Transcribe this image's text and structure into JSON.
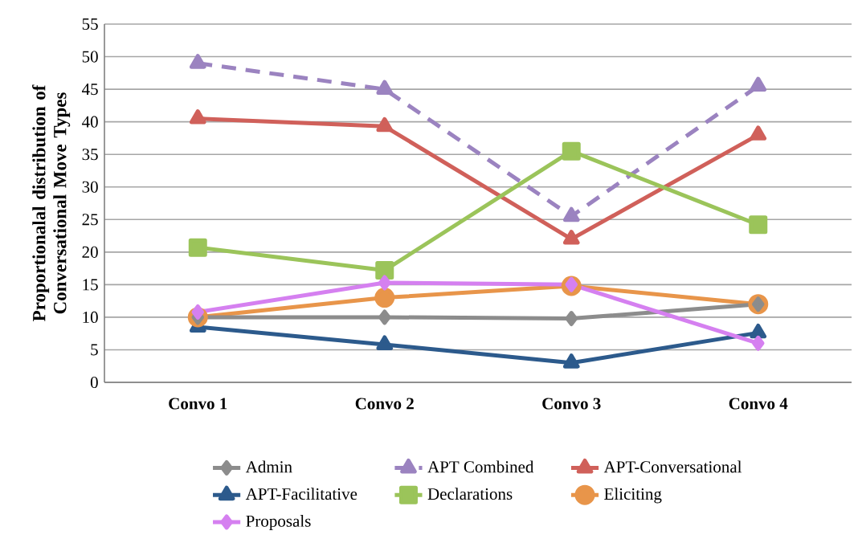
{
  "chart_data": {
    "type": "line",
    "ylabel": "Proportionalal distribution of Conversational Move Types",
    "categories": [
      "Convo 1",
      "Convo 2",
      "Convo 3",
      "Convo 4"
    ],
    "series": [
      {
        "name": "Admin",
        "color": "#8c8c8c",
        "marker": "diamond",
        "values": [
          10,
          10,
          9.8,
          12
        ]
      },
      {
        "name": "APT Combined",
        "color": "#9b83c0",
        "marker": "triangle",
        "line_style": "dashed",
        "values": [
          49,
          45,
          25.5,
          45.5
        ]
      },
      {
        "name": "APT-Conversational",
        "color": "#d0605a",
        "marker": "triangle",
        "values": [
          40.5,
          39.3,
          22,
          38
        ]
      },
      {
        "name": "APT-Facilitative",
        "color": "#2c5a8c",
        "marker": "triangle",
        "values": [
          8.5,
          5.8,
          3,
          7.6
        ]
      },
      {
        "name": "Declarations",
        "color": "#9bc45a",
        "marker": "square",
        "values": [
          20.7,
          17.2,
          35.5,
          24.2
        ]
      },
      {
        "name": "Eliciting",
        "color": "#e8954a",
        "marker": "circle",
        "values": [
          10,
          13,
          14.8,
          12
        ]
      },
      {
        "name": "Proposals",
        "color": "#d580f0",
        "marker": "diamond",
        "values": [
          10.8,
          15.3,
          15,
          6
        ]
      }
    ],
    "ylim": [
      0,
      55
    ],
    "yticks": [
      0,
      5,
      10,
      15,
      20,
      25,
      30,
      35,
      40,
      45,
      50,
      55
    ],
    "grid": "y",
    "legend": "bottom"
  }
}
